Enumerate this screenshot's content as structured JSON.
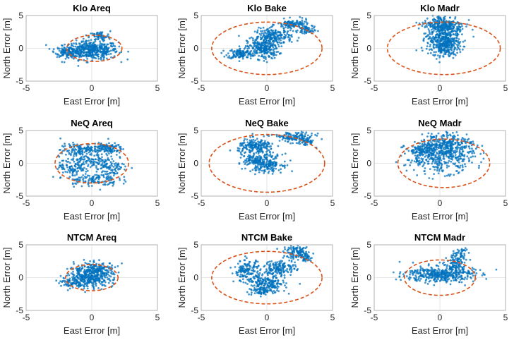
{
  "chart_data": [
    {
      "type": "scatter",
      "title": "Klo Areq",
      "xlabel": "East Error [m]",
      "ylabel": "North Error [m]",
      "xlim": [
        -5,
        5
      ],
      "ylim": [
        -5,
        5
      ],
      "xticks": [
        "-5",
        "0",
        "5"
      ],
      "yticks": [
        "-5",
        "0",
        "5"
      ],
      "grid": true,
      "ellipse": {
        "center": [
          0.2,
          0
        ],
        "semi_axes": [
          2.1,
          2.0
        ]
      },
      "clusters": [
        [
          0,
          -0.3,
          1.0,
          0.7,
          450
        ],
        [
          -1.8,
          -0.5,
          0.5,
          0.4,
          120
        ],
        [
          0.6,
          1.8,
          0.4,
          0.4,
          60
        ]
      ]
    },
    {
      "type": "scatter",
      "title": "Klo Bake",
      "xlabel": "East Error [m]",
      "ylabel": "North Error [m]",
      "xlim": [
        -5,
        5
      ],
      "ylim": [
        -5,
        5
      ],
      "xticks": [
        "-5",
        "0",
        "5"
      ],
      "yticks": [
        "-5",
        "0",
        "5"
      ],
      "grid": true,
      "ellipse": {
        "center": [
          0,
          0
        ],
        "semi_axes": [
          4.2,
          4.0
        ]
      },
      "clusters": [
        [
          -2,
          -0.8,
          0.5,
          0.4,
          120
        ],
        [
          -0.3,
          0,
          0.6,
          0.8,
          250
        ],
        [
          0.5,
          1.8,
          0.7,
          0.6,
          200
        ],
        [
          2,
          3.6,
          0.6,
          0.4,
          120
        ],
        [
          3,
          2.8,
          0.3,
          0.4,
          60
        ]
      ]
    },
    {
      "type": "scatter",
      "title": "Klo Madr",
      "xlabel": "East Error [m]",
      "ylabel": "North Error [m]",
      "xlim": [
        -5,
        5
      ],
      "ylim": [
        -5,
        5
      ],
      "xticks": [
        "-5",
        "0",
        "5"
      ],
      "yticks": [
        "-5",
        "0",
        "5"
      ],
      "grid": true,
      "ellipse": {
        "center": [
          0.3,
          0
        ],
        "semi_axes": [
          4.3,
          4.0
        ]
      },
      "clusters": [
        [
          0.2,
          1.5,
          0.6,
          1.2,
          300
        ],
        [
          0.3,
          3.5,
          0.8,
          0.8,
          250
        ],
        [
          0.5,
          0.3,
          0.5,
          0.8,
          150
        ]
      ]
    },
    {
      "type": "scatter",
      "title": "NeQ Areq",
      "xlabel": "East Error [m]",
      "ylabel": "North Error [m]",
      "xlim": [
        -5,
        5
      ],
      "ylim": [
        -5,
        5
      ],
      "xticks": [
        "-5",
        "0",
        "5"
      ],
      "yticks": [
        "-5",
        "0",
        "5"
      ],
      "grid": true,
      "ellipse": {
        "center": [
          0,
          0
        ],
        "semi_axes": [
          2.8,
          3.0
        ]
      },
      "clusters": [
        [
          -1,
          2,
          0.7,
          0.5,
          120
        ],
        [
          1,
          2.3,
          0.7,
          0.4,
          120
        ],
        [
          -1.5,
          -0.5,
          0.5,
          0.8,
          100
        ],
        [
          1.5,
          -0.5,
          0.6,
          0.8,
          100
        ],
        [
          0,
          -2.5,
          1,
          0.5,
          120
        ],
        [
          0,
          0.3,
          0.6,
          0.5,
          80
        ]
      ]
    },
    {
      "type": "scatter",
      "title": "NeQ Bake",
      "xlabel": "East Error [m]",
      "ylabel": "North Error [m]",
      "xlim": [
        -5,
        5
      ],
      "ylim": [
        -5,
        5
      ],
      "xticks": [
        "-5",
        "0",
        "5"
      ],
      "yticks": [
        "-5",
        "0",
        "5"
      ],
      "grid": true,
      "ellipse": {
        "center": [
          0,
          0
        ],
        "semi_axes": [
          4.4,
          4.4
        ]
      },
      "clusters": [
        [
          -0.8,
          2.5,
          0.7,
          0.6,
          200
        ],
        [
          0,
          0,
          0.6,
          0.7,
          200
        ],
        [
          2,
          4,
          0.8,
          0.4,
          120
        ],
        [
          3,
          3.3,
          0.3,
          0.3,
          50
        ],
        [
          -1,
          0.5,
          0.4,
          0.5,
          80
        ]
      ]
    },
    {
      "type": "scatter",
      "title": "NeQ Madr",
      "xlabel": "East Error [m]",
      "ylabel": "North Error [m]",
      "xlim": [
        -5,
        5
      ],
      "ylim": [
        -5,
        5
      ],
      "xticks": [
        "-5",
        "0",
        "5"
      ],
      "yticks": [
        "-5",
        "0",
        "5"
      ],
      "grid": true,
      "ellipse": {
        "center": [
          0.3,
          0
        ],
        "semi_axes": [
          3.5,
          3.7
        ]
      },
      "clusters": [
        [
          0,
          1,
          1.3,
          1.2,
          400
        ],
        [
          0.5,
          3,
          1,
          0.9,
          250
        ],
        [
          -1.5,
          2,
          0.5,
          0.4,
          60
        ]
      ]
    },
    {
      "type": "scatter",
      "title": "NTCM Areq",
      "xlabel": "East Error [m]",
      "ylabel": "North Error [m]",
      "xlim": [
        -5,
        5
      ],
      "ylim": [
        -5,
        5
      ],
      "xticks": [
        "-5",
        "0",
        "5"
      ],
      "yticks": [
        "-5",
        "0",
        "5"
      ],
      "grid": true,
      "ellipse": {
        "center": [
          0,
          0
        ],
        "semi_axes": [
          2.0,
          2.0
        ]
      },
      "clusters": [
        [
          -0.2,
          -0.2,
          0.9,
          0.6,
          300
        ],
        [
          0.3,
          1.3,
          0.8,
          0.5,
          200
        ],
        [
          -1.5,
          -0.8,
          0.4,
          0.4,
          60
        ]
      ]
    },
    {
      "type": "scatter",
      "title": "NTCM Bake",
      "xlabel": "East Error [m]",
      "ylabel": "North Error [m]",
      "xlim": [
        -5,
        5
      ],
      "ylim": [
        -5,
        5
      ],
      "xticks": [
        "-5",
        "0",
        "5"
      ],
      "yticks": [
        "-5",
        "0",
        "5"
      ],
      "grid": true,
      "ellipse": {
        "center": [
          0,
          0
        ],
        "semi_axes": [
          4.2,
          4.0
        ]
      },
      "clusters": [
        [
          -1.5,
          1,
          0.5,
          0.8,
          150
        ],
        [
          0,
          -1,
          0.7,
          0.7,
          200
        ],
        [
          1,
          1.5,
          0.6,
          0.6,
          150
        ],
        [
          2.3,
          3.8,
          0.5,
          0.5,
          120
        ],
        [
          3,
          3,
          0.2,
          0.3,
          40
        ],
        [
          -0.5,
          -2,
          0.5,
          0.3,
          60
        ]
      ]
    },
    {
      "type": "scatter",
      "title": "NTCM Madr",
      "xlabel": "East Error [m]",
      "ylabel": "North Error [m]",
      "xlim": [
        -5,
        5
      ],
      "ylim": [
        -5,
        5
      ],
      "xticks": [
        "-5",
        "0",
        "5"
      ],
      "yticks": [
        "-5",
        "0",
        "5"
      ],
      "grid": true,
      "ellipse": {
        "center": [
          0,
          0
        ],
        "semi_axes": [
          2.7,
          2.7
        ]
      },
      "clusters": [
        [
          0,
          0.5,
          1.3,
          0.6,
          400
        ],
        [
          1.2,
          2,
          0.4,
          0.8,
          100
        ],
        [
          1.5,
          3.5,
          0.3,
          0.6,
          40
        ]
      ]
    }
  ],
  "colors": {
    "points": "#0072BD",
    "ellipse": "#D95319",
    "grid": "#e6e6e6",
    "frame": "#b0b0b0"
  }
}
